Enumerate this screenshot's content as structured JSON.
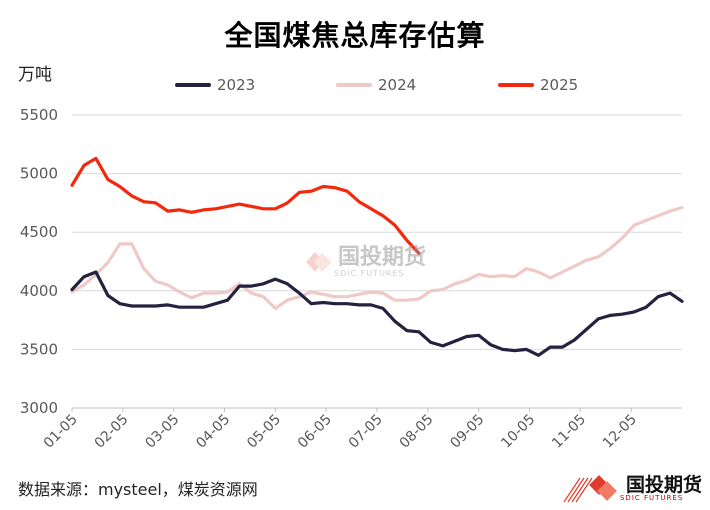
{
  "title": "全国煤焦总库存估算",
  "y_unit": "万吨",
  "source": "数据来源：mysteel，煤炭资源网",
  "logo": {
    "name": "国投期货",
    "sub": "SDIC FUTURES"
  },
  "watermark": {
    "name": "国投期货",
    "sub": "SDIC FUTURES"
  },
  "colors": {
    "s2023": "#23223f",
    "s2024": "#efc9c7",
    "s2025": "#f3280c",
    "logo_red": "#e03a2a"
  },
  "chart_data": {
    "type": "line",
    "title": "全国煤焦总库存估算",
    "ylabel": "万吨",
    "xlabel": "",
    "ylim": [
      3000,
      5500
    ],
    "yticks": [
      3000,
      3500,
      4000,
      4500,
      5000,
      5500
    ],
    "xticks": [
      "01-05",
      "02-05",
      "03-05",
      "04-05",
      "05-05",
      "06-05",
      "07-05",
      "08-05",
      "09-05",
      "10-05",
      "11-05",
      "12-05"
    ],
    "grid": "horizontal",
    "legend": "top-center",
    "series": [
      {
        "name": "2023",
        "color": "#23223f",
        "values": [
          4010,
          4120,
          4160,
          3960,
          3890,
          3870,
          3870,
          3870,
          3880,
          3860,
          3860,
          3860,
          3890,
          3920,
          4040,
          4040,
          4060,
          4100,
          4060,
          3980,
          3890,
          3900,
          3890,
          3890,
          3880,
          3880,
          3850,
          3740,
          3660,
          3650,
          3560,
          3530,
          3570,
          3610,
          3620,
          3540,
          3500,
          3490,
          3500,
          3450,
          3520,
          3520,
          3580,
          3670,
          3760,
          3790,
          3800,
          3820,
          3860,
          3950,
          3980,
          3910
        ]
      },
      {
        "name": "2024",
        "color": "#efc9c7",
        "values": [
          3990,
          4050,
          4140,
          4240,
          4400,
          4400,
          4190,
          4080,
          4050,
          3990,
          3940,
          3980,
          3980,
          3990,
          4060,
          3980,
          3950,
          3850,
          3920,
          3950,
          3990,
          3970,
          3950,
          3950,
          3970,
          3990,
          3980,
          3920,
          3920,
          3930,
          4000,
          4010,
          4060,
          4090,
          4140,
          4120,
          4130,
          4120,
          4190,
          4160,
          4110,
          4160,
          4210,
          4260,
          4290,
          4360,
          4450,
          4560,
          4600,
          4640,
          4680,
          4710
        ]
      },
      {
        "name": "2025",
        "color": "#f3280c",
        "values": [
          4900,
          5070,
          5130,
          4950,
          4890,
          4810,
          4760,
          4750,
          4680,
          4690,
          4670,
          4690,
          4700,
          4720,
          4740,
          4720,
          4700,
          4700,
          4750,
          4840,
          4850,
          4890,
          4880,
          4850,
          4760,
          4700,
          4640,
          4560,
          4430,
          4320
        ]
      }
    ]
  }
}
